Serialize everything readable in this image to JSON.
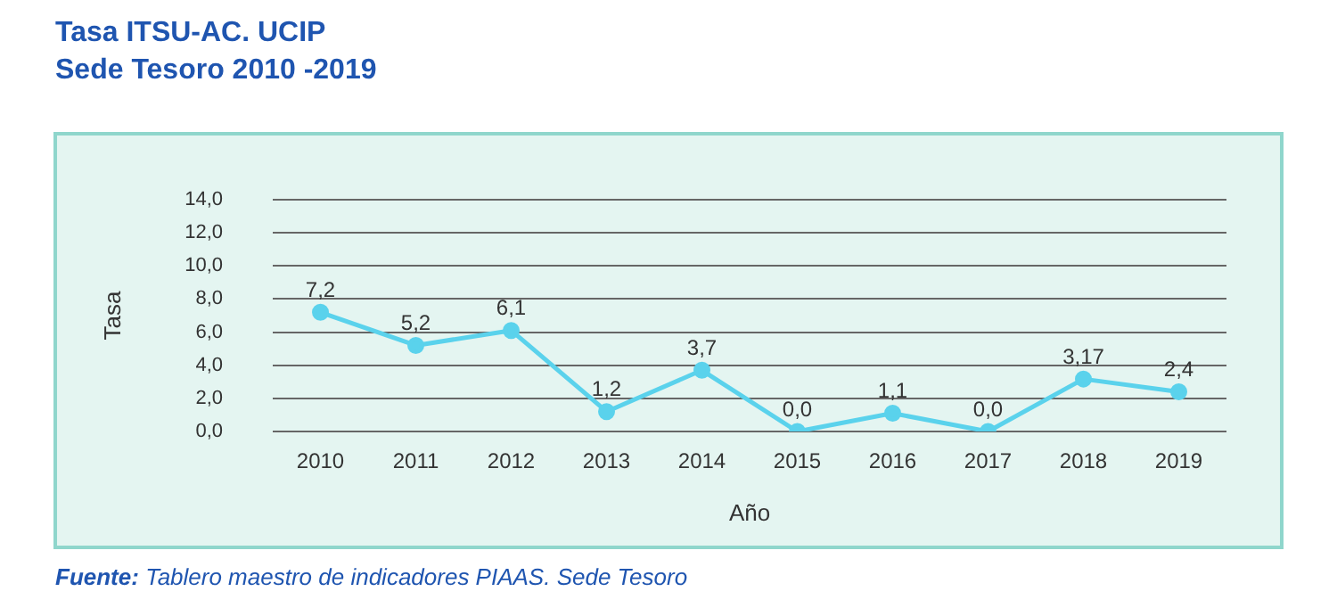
{
  "chart_data": {
    "type": "line",
    "title": "Tasa ITSU-AC. UCIP",
    "subtitle": "Sede Tesoro 2010 -2019",
    "xlabel": "Año",
    "ylabel": "Tasa",
    "annotations": [
      "Fuente: Tablero maestro de indicadores PIAAS. Sede Tesoro"
    ],
    "categories": [
      "2010",
      "2011",
      "2012",
      "2013",
      "2014",
      "2015",
      "2016",
      "2017",
      "2018",
      "2019"
    ],
    "series": [
      {
        "color": "#5ad2ec",
        "values": [
          7.2,
          5.2,
          6.1,
          1.2,
          3.7,
          0.0,
          1.1,
          0.0,
          3.17,
          2.4
        ],
        "value_labels": [
          "7,2",
          "5,2",
          "6,1",
          "1,2",
          "3,7",
          "0,0",
          "1,1",
          "0,0",
          "3,17",
          "2,4"
        ]
      }
    ],
    "ylim": [
      0,
      14
    ],
    "yticks": [
      {
        "value": 0,
        "label": "0,0"
      },
      {
        "value": 2,
        "label": "2,0"
      },
      {
        "value": 4,
        "label": "4,0"
      },
      {
        "value": 6,
        "label": "6,0"
      },
      {
        "value": 8,
        "label": "8,0"
      },
      {
        "value": 10,
        "label": "10,0"
      },
      {
        "value": 12,
        "label": "12,0"
      },
      {
        "value": 14,
        "label": "14,0"
      }
    ],
    "grid": "y",
    "legend": false,
    "marker": "circle",
    "line_style": "solid"
  }
}
